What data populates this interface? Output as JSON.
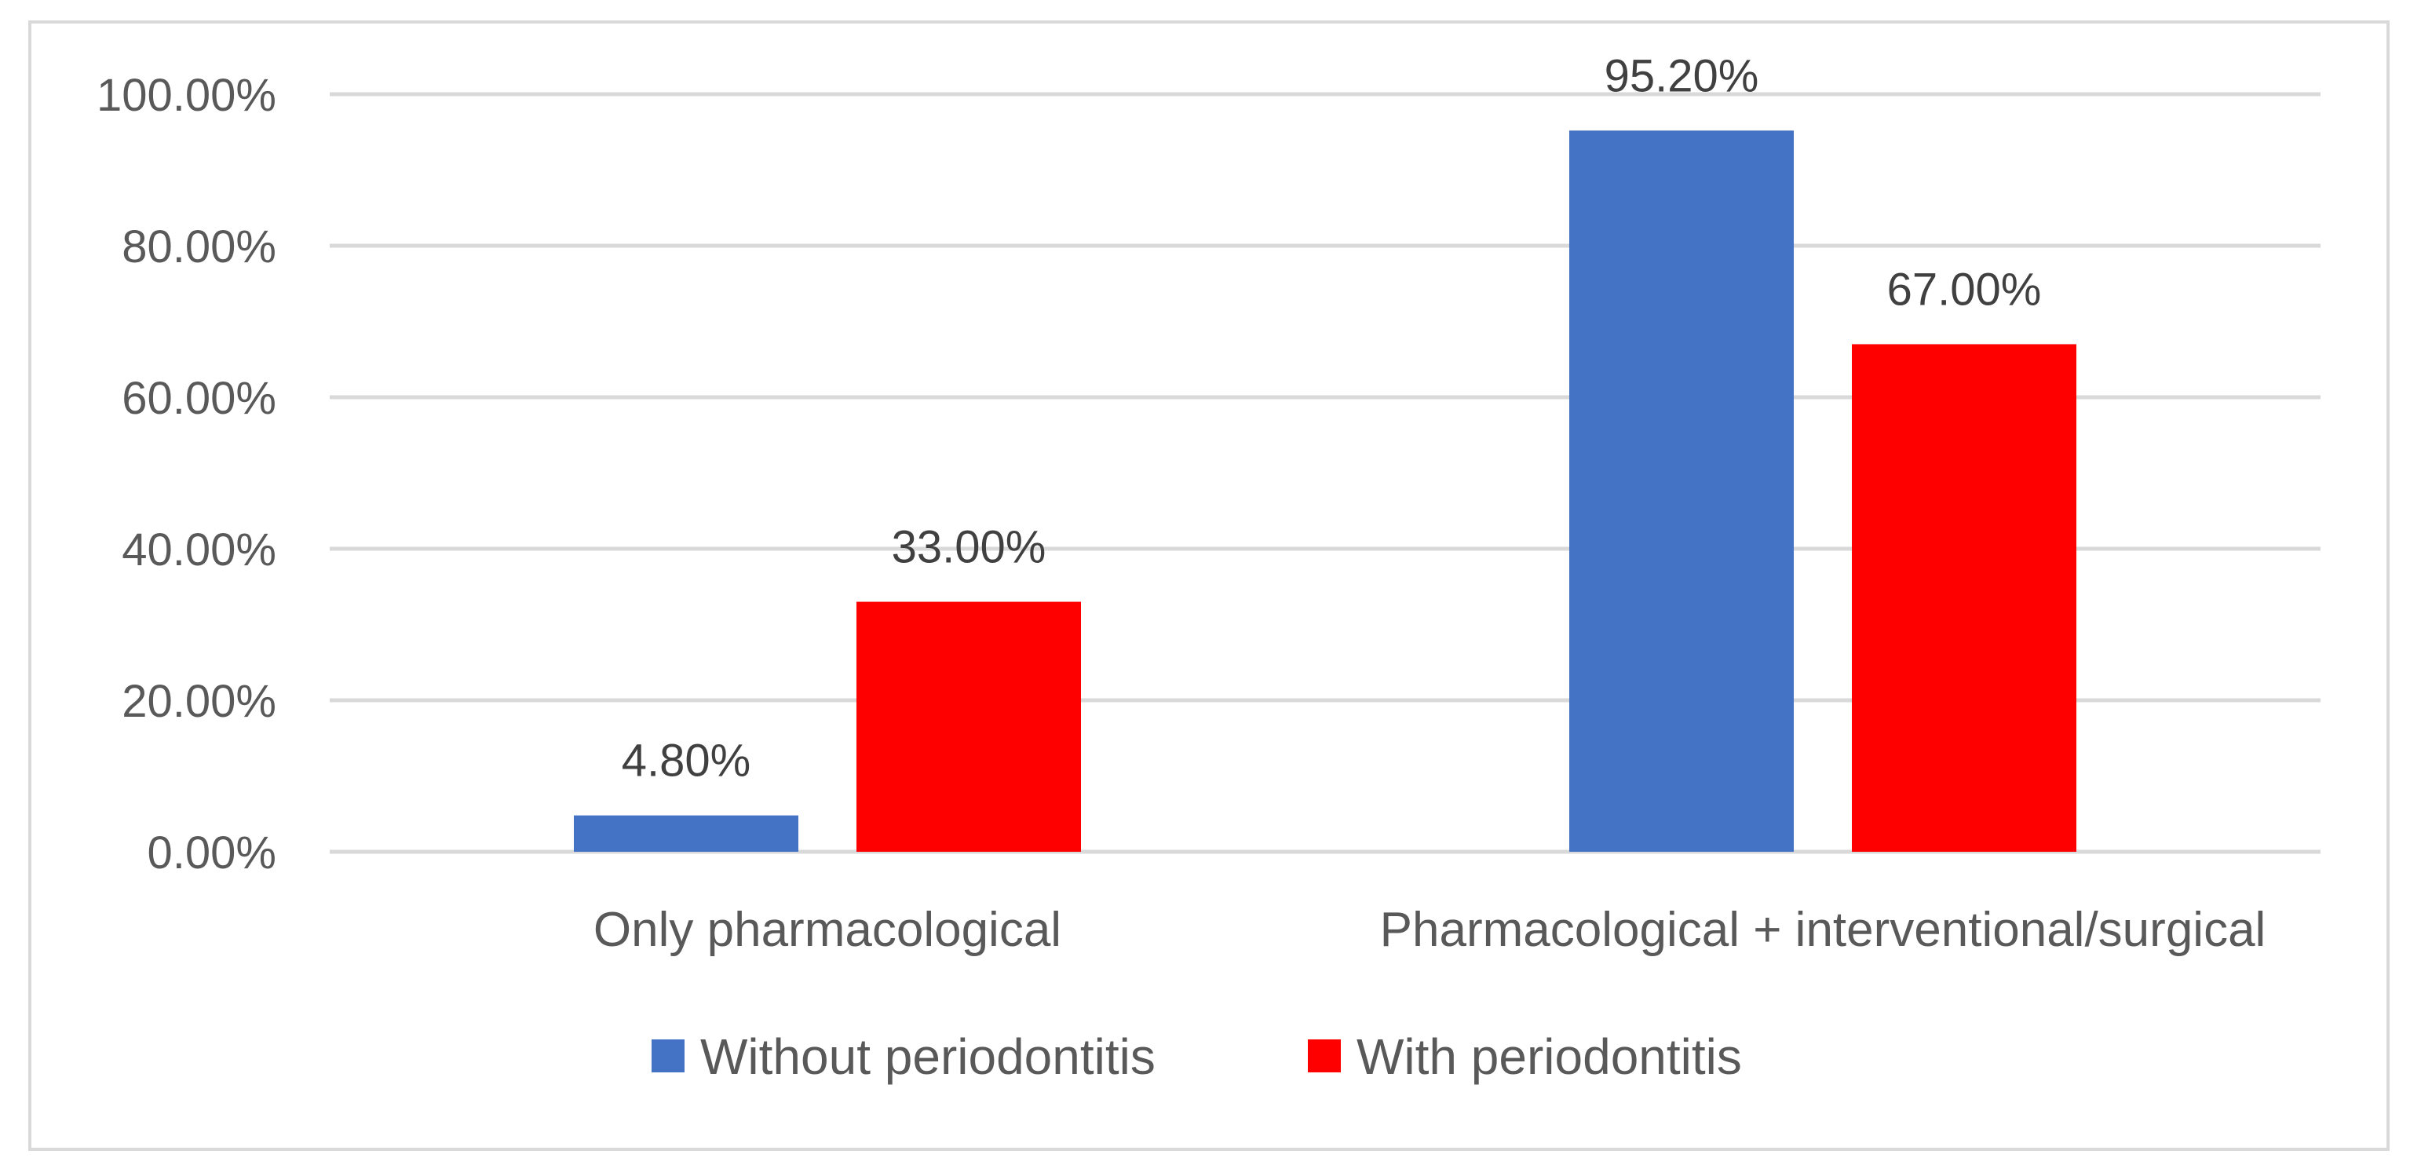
{
  "chart_data": {
    "type": "bar",
    "title": "",
    "xlabel": "",
    "ylabel": "",
    "categories": [
      "Only pharmacological",
      "Pharmacological + interventional/surgical"
    ],
    "series": [
      {
        "name": "Without periodontitis",
        "values": [
          4.8,
          95.2
        ],
        "labels": [
          "4.80%",
          "95.20%"
        ],
        "color": "#4472C4"
      },
      {
        "name": "With periodontitis",
        "values": [
          33.0,
          67.0
        ],
        "labels": [
          "33.00%",
          "67.00%"
        ],
        "color": "#FF0000"
      }
    ],
    "ylim": [
      0,
      100
    ],
    "yticks": [
      0,
      20,
      40,
      60,
      80,
      100
    ],
    "ytick_labels": [
      "0.00%",
      "20.00%",
      "40.00%",
      "60.00%",
      "80.00%",
      "100.00%"
    ],
    "grid": true,
    "legend_position": "bottom",
    "gridline_color": "#d9d9d9"
  }
}
